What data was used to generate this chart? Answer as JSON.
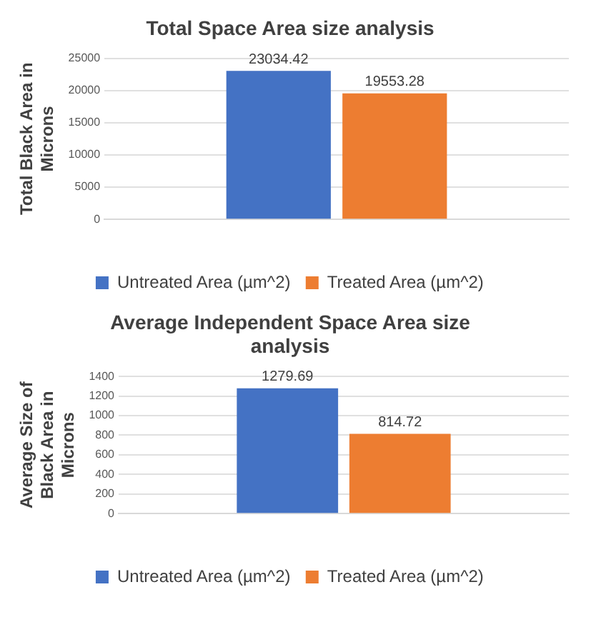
{
  "chart_data": [
    {
      "type": "bar",
      "title": "Total Space Area size analysis",
      "ylabel": "Total Black Area in Microns",
      "categories": [
        null
      ],
      "series": [
        {
          "name": "Untreated Area (µm^2)",
          "color": "#4472c4",
          "values": [
            23034.42
          ]
        },
        {
          "name": "Treated Area (µm^2)",
          "color": "#ed7d31",
          "values": [
            19553.28
          ]
        }
      ],
      "ylim": [
        0,
        25000
      ],
      "yticks": [
        0,
        5000,
        10000,
        15000,
        20000,
        25000
      ],
      "grid": "y",
      "legend": "bottom",
      "data_labels": true
    },
    {
      "type": "bar",
      "title": "Average Independent Space Area size analysis",
      "ylabel": "Average Size of Black Area in Microns",
      "categories": [
        null
      ],
      "series": [
        {
          "name": "Untreated Area (µm^2)",
          "color": "#4472c4",
          "values": [
            1279.69
          ]
        },
        {
          "name": "Treated Area (µm^2)",
          "color": "#ed7d31",
          "values": [
            814.72
          ]
        }
      ],
      "ylim": [
        0,
        1400
      ],
      "yticks": [
        0,
        200,
        400,
        600,
        800,
        1000,
        1200,
        1400
      ],
      "grid": "y",
      "legend": "bottom",
      "data_labels": true
    }
  ]
}
